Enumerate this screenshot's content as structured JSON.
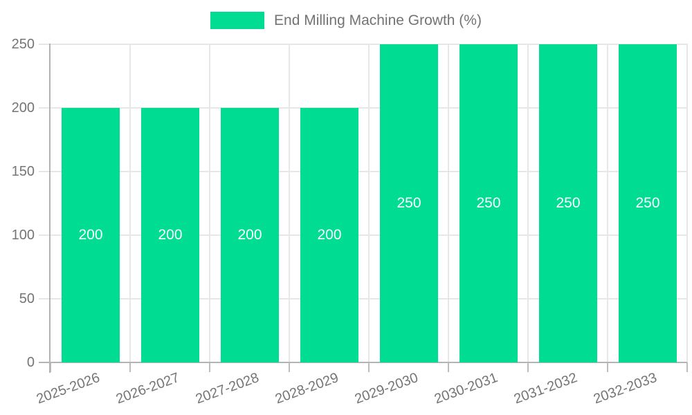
{
  "chart_data": {
    "type": "bar",
    "title": "End Milling Machine Growth (%)",
    "categories": [
      "2025-2026",
      "2026-2027",
      "2027-2028",
      "2028-2029",
      "2029-2030",
      "2030-2031",
      "2031-2032",
      "2032-2033"
    ],
    "series": [
      {
        "name": "End Milling Machine Growth (%)",
        "values": [
          200,
          200,
          200,
          200,
          250,
          250,
          250,
          250
        ]
      }
    ],
    "bar_labels": [
      "200",
      "200",
      "200",
      "200",
      "250",
      "250",
      "250",
      "250"
    ],
    "xlabel": "",
    "ylabel": "",
    "ylim": [
      0,
      250
    ],
    "yticks": [
      0,
      50,
      100,
      150,
      200,
      250
    ],
    "grid": true,
    "legend_position": "top"
  },
  "legend": {
    "label": "End Milling Machine Growth (%)"
  },
  "colors": {
    "bar": "#00DD92",
    "bar_value_label": "#ffffff",
    "text": "#757575",
    "legend_text": "#737373",
    "axis_line": "#b4b4b4",
    "gridline": "#e7e7e7"
  }
}
